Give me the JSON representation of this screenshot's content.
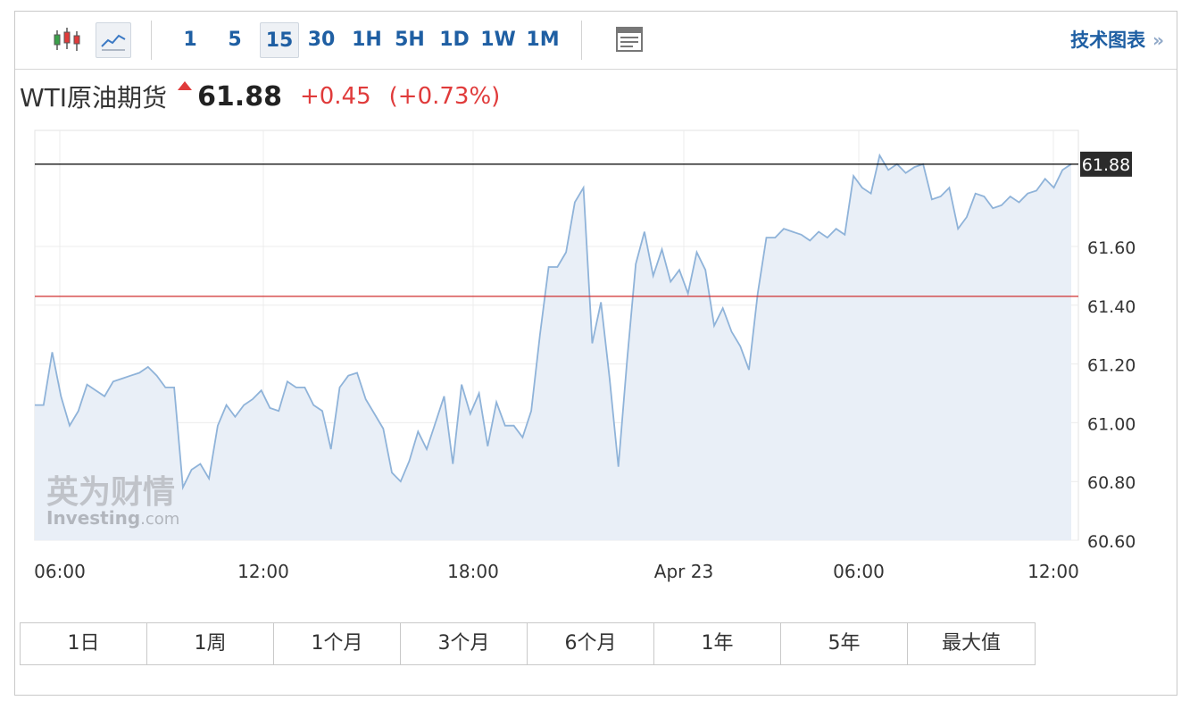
{
  "toolbar": {
    "intervals": [
      "1",
      "5",
      "15",
      "30",
      "1H",
      "5H",
      "1D",
      "1W",
      "1M"
    ],
    "selected_interval": "15",
    "tech_chart_label": "技术图表",
    "tech_chart_chevron": "»",
    "icons": [
      "candlestick-chart-icon",
      "line-chart-icon",
      "table-view-icon"
    ]
  },
  "quote": {
    "name": "WTI原油期货",
    "direction": "up",
    "price": "61.88",
    "change": "+0.45",
    "change_pct": "(+0.73%)"
  },
  "colors": {
    "accent": "#1f5fa3",
    "up": "#e03b3b",
    "line": "#8fb3d9",
    "area": "#e9eff7",
    "current_price_line": "#000000",
    "prev_close_line": "#d03030"
  },
  "watermark": {
    "cn": "英为财情",
    "en_brand": "Investing",
    "en_suffix": ".com"
  },
  "chart_data": {
    "type": "area",
    "x_tick_labels": [
      "06:00",
      "12:00",
      "18:00",
      "Apr 23",
      "06:00",
      "12:00"
    ],
    "y_tick_labels": [
      "60.60",
      "60.80",
      "61.00",
      "61.20",
      "61.40",
      "61.60"
    ],
    "ylim": [
      60.6,
      62.0
    ],
    "current_price": 61.88,
    "current_price_label": "61.88",
    "prev_close": 61.43,
    "series": [
      {
        "values": [
          61.06,
          61.06,
          61.24,
          61.09,
          60.99,
          61.04,
          61.13,
          61.11,
          61.09,
          61.14,
          61.15,
          61.16,
          61.17,
          61.19,
          61.16,
          61.12,
          61.12,
          60.78,
          60.84,
          60.86,
          60.81,
          60.99,
          61.06,
          61.02,
          61.06,
          61.08,
          61.11,
          61.05,
          61.04,
          61.14,
          61.12,
          61.12,
          61.06,
          61.04,
          60.91,
          61.12,
          61.16,
          61.17,
          61.08,
          61.03,
          60.98,
          60.83,
          60.8,
          60.87,
          60.97,
          60.91,
          61.0,
          61.09,
          60.86,
          61.13,
          61.03,
          61.1,
          60.92,
          61.07,
          60.99,
          60.99,
          60.95,
          61.04,
          61.3,
          61.53,
          61.53,
          61.58,
          61.75,
          61.8,
          61.27,
          61.41,
          61.15,
          60.85,
          61.21,
          61.54,
          61.65,
          61.5,
          61.59,
          61.48,
          61.52,
          61.44,
          61.58,
          61.52,
          61.33,
          61.39,
          61.31,
          61.26,
          61.18,
          61.44,
          61.63,
          61.63,
          61.66,
          61.65,
          61.64,
          61.62,
          61.65,
          61.63,
          61.66,
          61.64,
          61.84,
          61.8,
          61.78,
          61.91,
          61.86,
          61.88,
          61.85,
          61.87,
          61.88,
          61.76,
          61.77,
          61.8,
          61.66,
          61.7,
          61.78,
          61.77,
          61.73,
          61.74,
          61.77,
          61.75,
          61.78,
          61.79,
          61.83,
          61.8,
          61.86,
          61.88
        ]
      }
    ]
  },
  "ranges": [
    "1日",
    "1周",
    "1个月",
    "3个月",
    "6个月",
    "1年",
    "5年",
    "最大值"
  ]
}
